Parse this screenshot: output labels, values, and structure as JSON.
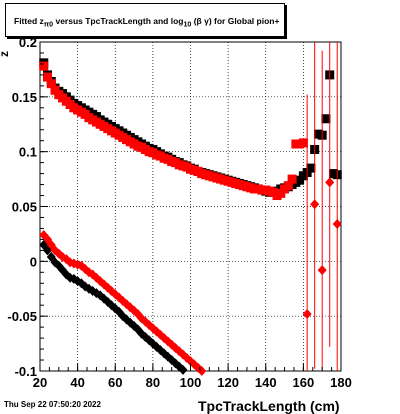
{
  "title": "Fitted  z",
  "title_sub": "π0",
  "title_mid": "  versus TpcTrackLength and log",
  "title_sub2": "10",
  "title_end": " (β  γ) for Global pion+",
  "timestamp": "Thu Sep 22 07:50:20 2022",
  "chart_data": {
    "type": "scatter",
    "title": "Fitted z_π0 versus TpcTrackLength and log10(β γ) for Global pion+",
    "xlabel": "TpcTrackLength (cm)",
    "ylabel": "z",
    "xlim": [
      20,
      180
    ],
    "ylim": [
      -0.1,
      0.2
    ],
    "xticks": [
      20,
      40,
      60,
      80,
      100,
      120,
      140,
      160,
      180
    ],
    "yticks": [
      "-0.1",
      "-0.05",
      "0",
      "0.05",
      "0.1",
      "0.15",
      "0.2"
    ],
    "ytick_values": [
      -0.1,
      -0.05,
      0,
      0.05,
      0.1,
      0.15,
      0.2
    ],
    "grid": true,
    "series": [
      {
        "marker": "square",
        "color": "#000000",
        "x": [
          22,
          24,
          26,
          28,
          30,
          32,
          34,
          36,
          38,
          40,
          42,
          44,
          46,
          48,
          50,
          52,
          54,
          56,
          58,
          60,
          62,
          64,
          66,
          68,
          70,
          72,
          74,
          76,
          78,
          80,
          82,
          84,
          86,
          88,
          90,
          92,
          94,
          96,
          98,
          100,
          102,
          104,
          106,
          108,
          110,
          112,
          114,
          116,
          118,
          120,
          122,
          124,
          126,
          128,
          130,
          132,
          134,
          136,
          138,
          140,
          142,
          144,
          146,
          148,
          150,
          152,
          154,
          156,
          158,
          160,
          162,
          164,
          166,
          168,
          170,
          172,
          174,
          176,
          178
        ],
        "y": [
          0.181,
          0.17,
          0.164,
          0.158,
          0.155,
          0.153,
          0.15,
          0.147,
          0.144,
          0.142,
          0.14,
          0.138,
          0.136,
          0.134,
          0.132,
          0.129,
          0.127,
          0.125,
          0.123,
          0.121,
          0.119,
          0.117,
          0.115,
          0.113,
          0.111,
          0.109,
          0.107,
          0.105,
          0.103,
          0.102,
          0.1,
          0.098,
          0.096,
          0.095,
          0.093,
          0.091,
          0.09,
          0.088,
          0.087,
          0.085,
          0.084,
          0.082,
          0.081,
          0.08,
          0.079,
          0.078,
          0.077,
          0.076,
          0.075,
          0.074,
          0.073,
          0.072,
          0.071,
          0.07,
          0.069,
          0.068,
          0.067,
          0.066,
          0.065,
          0.064,
          0.063,
          0.063,
          0.064,
          0.066,
          0.067,
          0.068,
          0.07,
          0.072,
          0.074,
          0.078,
          0.081,
          0.085,
          0.102,
          0.116,
          0.115,
          0.13,
          0.17,
          0.08,
          0.079
        ],
        "err": []
      },
      {
        "marker": "square",
        "color": "#ff0000",
        "x": [
          22,
          24,
          26,
          28,
          30,
          32,
          34,
          36,
          38,
          40,
          42,
          44,
          46,
          48,
          50,
          52,
          54,
          56,
          58,
          60,
          62,
          64,
          66,
          68,
          70,
          72,
          74,
          76,
          78,
          80,
          82,
          84,
          86,
          88,
          90,
          92,
          94,
          96,
          98,
          100,
          102,
          104,
          106,
          108,
          110,
          112,
          114,
          116,
          118,
          120,
          122,
          124,
          126,
          128,
          130,
          132,
          134,
          136,
          138,
          140,
          142,
          144,
          146,
          148,
          150,
          152,
          154,
          156,
          158,
          160
        ],
        "y": [
          0.178,
          0.168,
          0.162,
          0.156,
          0.152,
          0.149,
          0.146,
          0.143,
          0.14,
          0.138,
          0.136,
          0.134,
          0.131,
          0.129,
          0.127,
          0.125,
          0.123,
          0.121,
          0.119,
          0.117,
          0.115,
          0.113,
          0.111,
          0.109,
          0.107,
          0.105,
          0.104,
          0.102,
          0.1,
          0.099,
          0.097,
          0.096,
          0.094,
          0.093,
          0.091,
          0.09,
          0.088,
          0.087,
          0.086,
          0.084,
          0.083,
          0.082,
          0.08,
          0.079,
          0.078,
          0.077,
          0.076,
          0.075,
          0.074,
          0.073,
          0.072,
          0.071,
          0.07,
          0.069,
          0.068,
          0.067,
          0.066,
          0.066,
          0.065,
          0.065,
          0.064,
          0.063,
          0.06,
          0.062,
          0.066,
          0.069,
          0.075,
          0.107,
          0.107,
          0.108
        ],
        "err": []
      },
      {
        "marker": "diamond",
        "color": "#000000",
        "x": [
          22,
          24,
          26,
          28,
          30,
          32,
          34,
          36,
          38,
          40,
          42,
          44,
          46,
          48,
          50,
          52,
          54,
          56,
          58,
          60,
          62,
          64,
          66,
          68,
          70,
          72,
          74,
          76,
          78,
          80,
          82,
          84,
          86,
          88,
          90,
          92,
          94,
          96,
          98,
          100,
          102,
          104
        ],
        "y": [
          0.015,
          0.01,
          0.004,
          -0.001,
          -0.004,
          -0.008,
          -0.012,
          -0.015,
          -0.016,
          -0.018,
          -0.02,
          -0.023,
          -0.025,
          -0.027,
          -0.029,
          -0.031,
          -0.034,
          -0.037,
          -0.04,
          -0.043,
          -0.046,
          -0.05,
          -0.053,
          -0.056,
          -0.059,
          -0.062,
          -0.066,
          -0.069,
          -0.072,
          -0.075,
          -0.078,
          -0.081,
          -0.084,
          -0.087,
          -0.09,
          -0.093,
          -0.096,
          -0.099,
          -0.102,
          -0.104,
          -0.106,
          -0.108
        ]
      },
      {
        "marker": "diamond",
        "color": "#ff0000",
        "x": [
          22,
          24,
          26,
          28,
          30,
          32,
          34,
          36,
          38,
          40,
          42,
          44,
          46,
          48,
          50,
          52,
          54,
          56,
          58,
          60,
          62,
          64,
          66,
          68,
          70,
          72,
          74,
          76,
          78,
          80,
          82,
          84,
          86,
          88,
          90,
          92,
          94,
          96,
          98,
          100,
          102,
          104,
          106
        ],
        "y": [
          0.024,
          0.02,
          0.015,
          0.01,
          0.007,
          0.004,
          0.002,
          -0.001,
          -0.002,
          -0.003,
          -0.004,
          -0.007,
          -0.01,
          -0.012,
          -0.015,
          -0.018,
          -0.021,
          -0.024,
          -0.027,
          -0.03,
          -0.033,
          -0.036,
          -0.039,
          -0.042,
          -0.045,
          -0.048,
          -0.052,
          -0.055,
          -0.058,
          -0.061,
          -0.064,
          -0.067,
          -0.07,
          -0.073,
          -0.076,
          -0.079,
          -0.082,
          -0.085,
          -0.088,
          -0.091,
          -0.094,
          -0.097,
          -0.1
        ]
      },
      {
        "marker": "diamond",
        "color": "#ff0000",
        "x": [
          162,
          166,
          170,
          174,
          178
        ],
        "y": [
          -0.048,
          0.052,
          -0.008,
          0.072,
          0.034
        ],
        "err": [
          0.2,
          0.15,
          0.2,
          0.15,
          0.2
        ]
      }
    ]
  }
}
